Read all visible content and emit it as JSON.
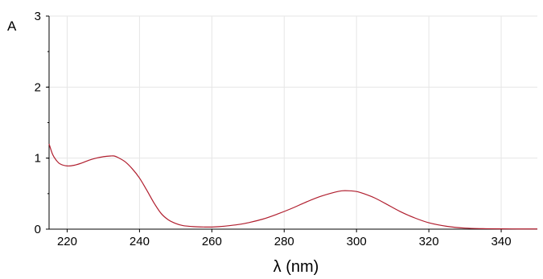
{
  "chart_data": {
    "type": "line",
    "title": "",
    "xlabel": "λ (nm)",
    "ylabel": "A",
    "xlim": [
      215,
      350
    ],
    "ylim": [
      0,
      3
    ],
    "grid": true,
    "legend": "none",
    "x_ticks": [
      "220",
      "240",
      "260",
      "280",
      "300",
      "320",
      "340"
    ],
    "y_ticks": [
      "0",
      "1",
      "2",
      "3"
    ],
    "colors": {
      "series": "#b01e2e",
      "grid": "#e6e6e6",
      "axis": "#000000"
    },
    "series": [
      {
        "x": [
          215,
          216,
          217,
          218,
          220,
          222,
          224,
          226,
          228,
          230,
          232,
          233,
          234,
          236,
          238,
          240,
          242,
          244,
          246,
          248,
          250,
          252,
          255,
          258,
          260,
          262,
          265,
          268,
          270,
          274,
          278,
          282,
          286,
          290,
          294,
          296,
          298,
          300,
          302,
          305,
          308,
          312,
          316,
          320,
          325,
          330,
          335,
          340,
          345,
          350
        ],
        "y": [
          1.2,
          1.05,
          0.97,
          0.92,
          0.89,
          0.9,
          0.93,
          0.97,
          1.0,
          1.02,
          1.03,
          1.03,
          1.01,
          0.95,
          0.85,
          0.72,
          0.55,
          0.37,
          0.22,
          0.13,
          0.08,
          0.05,
          0.035,
          0.03,
          0.03,
          0.035,
          0.05,
          0.07,
          0.09,
          0.14,
          0.21,
          0.29,
          0.38,
          0.46,
          0.52,
          0.54,
          0.54,
          0.53,
          0.5,
          0.44,
          0.36,
          0.25,
          0.16,
          0.09,
          0.04,
          0.015,
          0.007,
          0.004,
          0.003,
          0.003
        ]
      }
    ]
  }
}
